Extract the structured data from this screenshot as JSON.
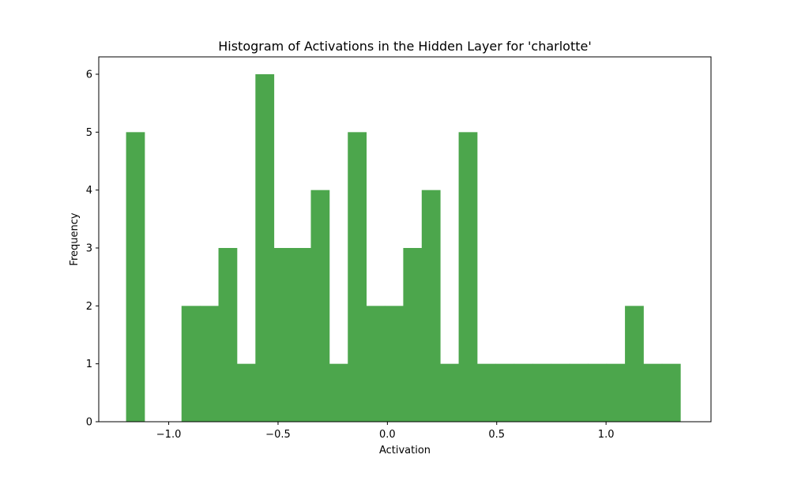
{
  "chart_data": {
    "type": "bar",
    "title": "Histogram of Activations in the Hidden Layer for 'charlotte'",
    "xlabel": "Activation",
    "ylabel": "Frequency",
    "xlim": [
      -1.32,
      1.48
    ],
    "ylim": [
      0,
      6.3
    ],
    "x_ticks": [
      -1.0,
      -0.5,
      0.0,
      0.5,
      1.0
    ],
    "x_tick_labels": [
      "−1.0",
      "−0.5",
      "0.0",
      "0.5",
      "1.0"
    ],
    "y_ticks": [
      0,
      1,
      2,
      3,
      4,
      5,
      6
    ],
    "y_tick_labels": [
      "0",
      "1",
      "2",
      "3",
      "4",
      "5",
      "6"
    ],
    "grid": false,
    "bar_color": "#4ca64c",
    "bin_start": -1.195,
    "bin_width": 0.0845,
    "counts": [
      5,
      0,
      0,
      2,
      2,
      3,
      1,
      6,
      3,
      3,
      4,
      1,
      5,
      2,
      2,
      3,
      4,
      1,
      5,
      1,
      1,
      1,
      1,
      1,
      1,
      1,
      1,
      2,
      1,
      1
    ]
  }
}
